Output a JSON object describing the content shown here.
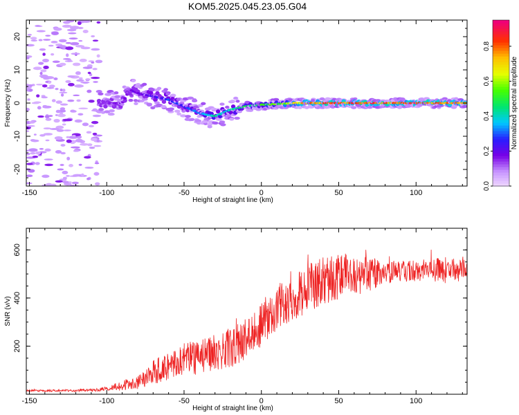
{
  "title": "KOM5.2025.045.23.05.G04",
  "chart_data": [
    {
      "type": "heatmap",
      "xlabel": "Height of straight line (km)",
      "ylabel": "Frequency (Hz)",
      "xlim": [
        -152,
        133
      ],
      "ylim": [
        -25,
        25
      ],
      "xticks": [
        -150,
        -100,
        -50,
        0,
        50,
        100
      ],
      "yticks": [
        -20,
        -10,
        0,
        10,
        20
      ],
      "grid": false,
      "colorbar": {
        "label": "Normalized spectral amplitude",
        "range": [
          0,
          0.95
        ],
        "ticks": [
          "0.0",
          "0.2",
          "0.4",
          "0.6",
          "0.8"
        ]
      },
      "ridge": {
        "x": [
          -100,
          -90,
          -85,
          -80,
          -70,
          -60,
          -50,
          -40,
          -35,
          -30,
          -25,
          -20,
          -10,
          0,
          10,
          20,
          30,
          50,
          70,
          90,
          110,
          133
        ],
        "frequency": [
          0,
          0,
          4,
          3,
          2,
          1,
          -1,
          -3,
          -3.5,
          -4,
          -3,
          -2,
          -1,
          -0.5,
          -0.3,
          0,
          0,
          0,
          0,
          0,
          0,
          0
        ],
        "amplitude": [
          0.15,
          0.2,
          0.2,
          0.2,
          0.25,
          0.3,
          0.3,
          0.35,
          0.4,
          0.45,
          0.4,
          0.45,
          0.5,
          0.55,
          0.6,
          0.7,
          0.85,
          0.9,
          0.9,
          0.85,
          0.9,
          0.8
        ]
      },
      "noise_region": {
        "x": [
          -152,
          -105
        ],
        "amplitude": 0.05
      }
    },
    {
      "type": "line",
      "xlabel": "Height of straight line (km)",
      "ylabel": "SNR (v/v)",
      "xlim": [
        -152,
        133
      ],
      "ylim": [
        0,
        690
      ],
      "xticks": [
        -150,
        -100,
        -50,
        0,
        50,
        100
      ],
      "yticks": [
        200,
        400,
        600
      ],
      "color": "#ee2222",
      "series": [
        {
          "x": [
            -152,
            -140,
            -120,
            -105,
            -100,
            -90,
            -80,
            -70,
            -60,
            -50,
            -40,
            -30,
            -20,
            -10,
            0,
            10,
            20,
            30,
            40,
            50,
            60,
            70,
            80,
            90,
            100,
            110,
            120,
            133
          ],
          "values": [
            15,
            15,
            15,
            18,
            25,
            35,
            55,
            90,
            120,
            145,
            155,
            170,
            190,
            230,
            290,
            360,
            400,
            440,
            470,
            490,
            495,
            500,
            505,
            510,
            515,
            520,
            515,
            520
          ],
          "jitter": [
            4,
            4,
            5,
            6,
            10,
            20,
            35,
            50,
            60,
            70,
            75,
            75,
            80,
            85,
            90,
            95,
            95,
            100,
            100,
            95,
            90,
            70,
            50,
            45,
            45,
            50,
            55,
            55
          ]
        }
      ]
    }
  ]
}
